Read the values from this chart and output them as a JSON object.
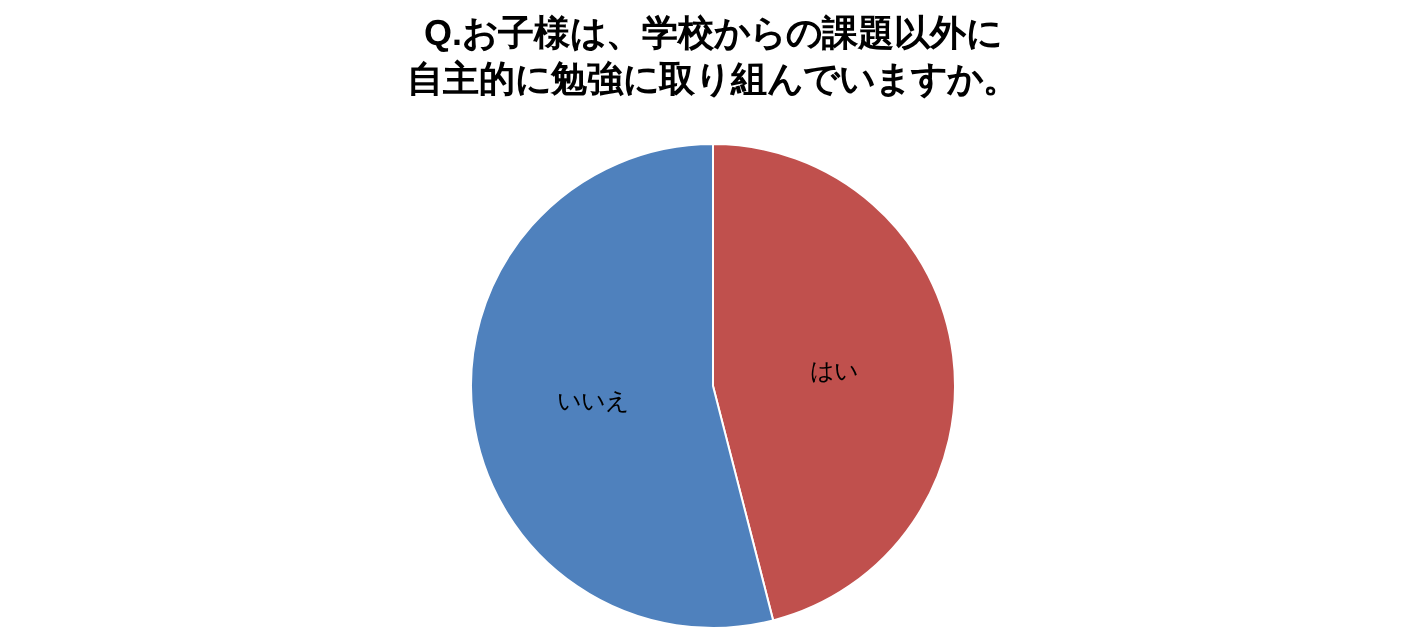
{
  "chart_data": {
    "type": "pie",
    "title": "Q.お子様は、学校からの課題以外に",
    "subtitle": "自主的に勉強に取り組んでいますか。",
    "categories": [
      "はい",
      "いいえ"
    ],
    "values": [
      46,
      54
    ],
    "colors": [
      "#c0504d",
      "#4f81bd"
    ]
  }
}
